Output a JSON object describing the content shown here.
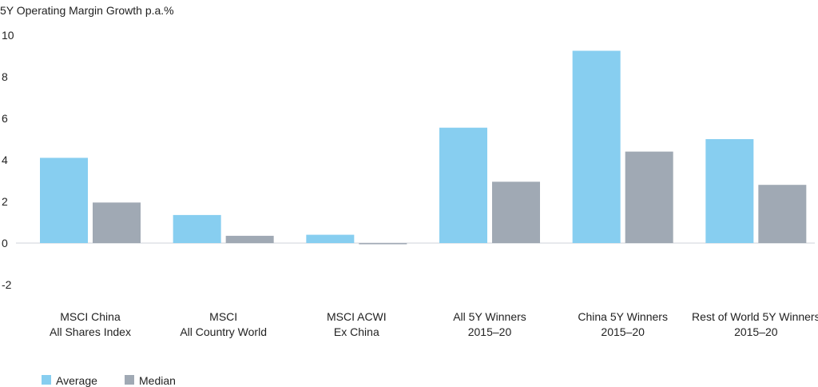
{
  "chart_data": {
    "type": "bar",
    "title": "5Y Operating Margin Growth p.a.%",
    "xlabel": "",
    "ylabel": "",
    "ylim": [
      -2,
      10
    ],
    "yticks": [
      "10",
      "8",
      "6",
      "4",
      "2",
      "0",
      "-2"
    ],
    "ytick_values": [
      10,
      8,
      6,
      4,
      2,
      0,
      -2
    ],
    "categories": [
      [
        "MSCI China",
        "All Shares Index"
      ],
      [
        "MSCI",
        "All Country World"
      ],
      [
        "MSCI ACWI",
        "Ex China"
      ],
      [
        "All 5Y Winners",
        "2015–20"
      ],
      [
        "China 5Y Winners",
        "2015–20"
      ],
      [
        "Rest of World 5Y Winners",
        "2015–20"
      ]
    ],
    "series": [
      {
        "name": "Average",
        "color": "#87cef0",
        "values": [
          4.1,
          1.35,
          0.4,
          5.55,
          9.25,
          5.0
        ]
      },
      {
        "name": "Median",
        "color": "#a0a9b4",
        "values": [
          1.95,
          0.35,
          -0.05,
          2.95,
          4.4,
          2.8
        ]
      }
    ],
    "grid": false,
    "legend": "bottom-left"
  }
}
